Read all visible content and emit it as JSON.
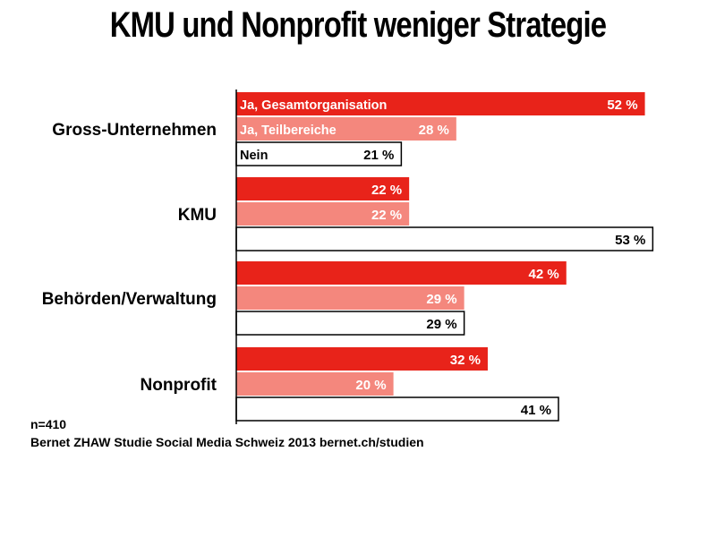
{
  "title": "KMU und Nonprofit weniger Strategie",
  "footer": {
    "n": "n=410",
    "source": "Bernet ZHAW Studie Social Media Schweiz 2013 bernet.ch/studien"
  },
  "colors": {
    "ja_gesamt": "#e8231a",
    "ja_teil": "#f4877d",
    "nein_fill": "#ffffff",
    "nein_stroke": "#000000"
  },
  "chart_data": {
    "type": "bar",
    "orientation": "horizontal",
    "title": "KMU und Nonprofit weniger Strategie",
    "categories": [
      "Gross-Unternehmen",
      "KMU",
      "Behörden/Verwaltung",
      "Nonprofit"
    ],
    "series": [
      {
        "name": "Ja, Gesamtorganisation",
        "values": [
          52,
          22,
          42,
          32
        ]
      },
      {
        "name": "Ja, Teilbereiche",
        "values": [
          28,
          22,
          29,
          20
        ]
      },
      {
        "name": "Nein",
        "values": [
          21,
          53,
          29,
          41
        ]
      }
    ],
    "unit": "%",
    "xlim": [
      0,
      53
    ],
    "grid": false,
    "legend": "inside-first-group"
  }
}
